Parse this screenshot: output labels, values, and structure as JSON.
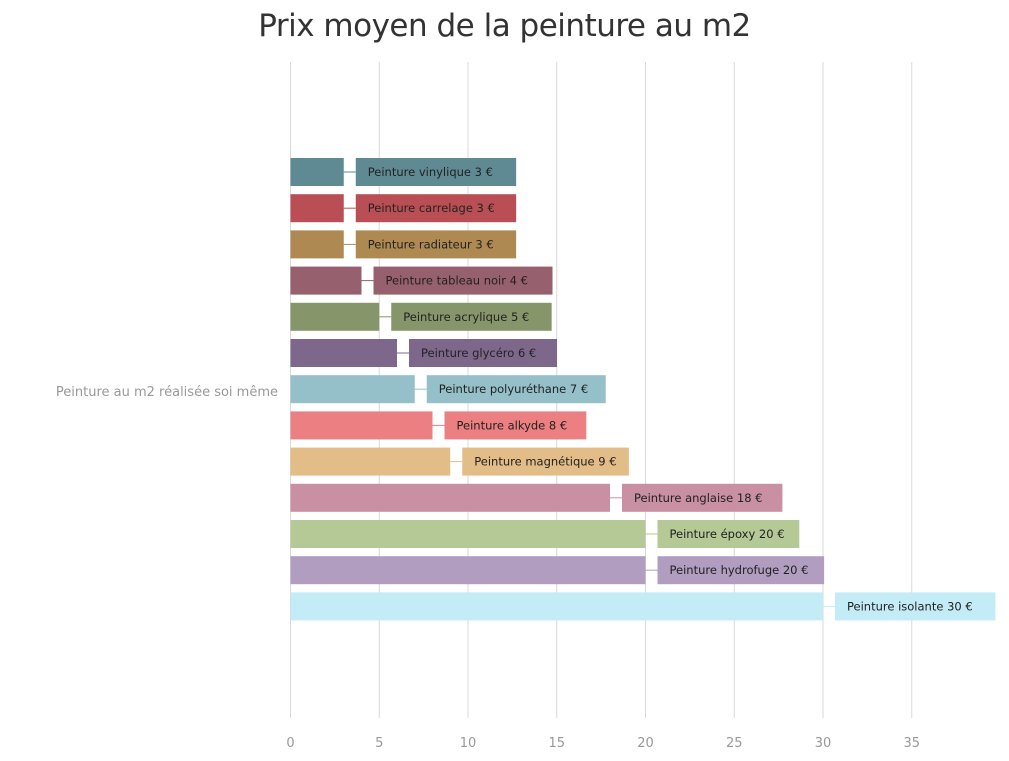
{
  "chart_data": {
    "type": "bar",
    "orientation": "horizontal",
    "title": "Prix moyen de la peinture au m2",
    "category": "Peinture au m2 réalisée soi même",
    "xlim": [
      0,
      39
    ],
    "xticks": [
      0,
      5,
      10,
      15,
      20,
      25,
      30,
      35
    ],
    "grid": true,
    "series": [
      {
        "name": "Peinture vinylique",
        "value": 3,
        "label": "Peinture vinylique 3 €",
        "color": "#5f8a93"
      },
      {
        "name": "Peinture carrelage",
        "value": 3,
        "label": "Peinture carrelage 3 €",
        "color": "#b94f55"
      },
      {
        "name": "Peinture radiateur",
        "value": 3,
        "label": "Peinture radiateur 3 €",
        "color": "#ae8a52"
      },
      {
        "name": "Peinture tableau noir",
        "value": 4,
        "label": "Peinture tableau noir 4 €",
        "color": "#96606e"
      },
      {
        "name": "Peinture acrylique",
        "value": 5,
        "label": "Peinture acrylique 5 €",
        "color": "#86956a"
      },
      {
        "name": "Peinture glycéro",
        "value": 6,
        "label": "Peinture glycéro 6 €",
        "color": "#7d688c"
      },
      {
        "name": "Peinture polyuréthane",
        "value": 7,
        "label": "Peinture polyuréthane 7 €",
        "color": "#95c0c9"
      },
      {
        "name": "Peinture alkyde",
        "value": 8,
        "label": "Peinture alkyde 8 €",
        "color": "#ec7f81"
      },
      {
        "name": "Peinture magnétique",
        "value": 9,
        "label": "Peinture magnétique 9 €",
        "color": "#e3bd87"
      },
      {
        "name": "Peinture anglaise",
        "value": 18,
        "label": "Peinture anglaise 18 €",
        "color": "#c98fa2"
      },
      {
        "name": "Peinture époxy",
        "value": 20,
        "label": "Peinture époxy 20 €",
        "color": "#b5c996"
      },
      {
        "name": "Peinture hydrofuge",
        "value": 20,
        "label": "Peinture hydrofuge 20 €",
        "color": "#b19dc0"
      },
      {
        "name": "Peinture isolante",
        "value": 30,
        "label": "Peinture isolante 30 €",
        "color": "#c3ecf7"
      }
    ]
  }
}
